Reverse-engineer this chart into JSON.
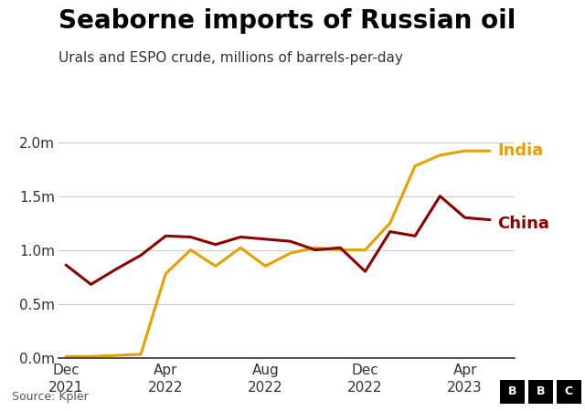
{
  "title": "Seaborne imports of Russian oil",
  "subtitle": "Urals and ESPO crude, millions of barrels-per-day",
  "source": "Source: Kpler",
  "india_color": "#E8A000",
  "china_color": "#8B0000",
  "background_color": "#ffffff",
  "ylim": [
    0.0,
    2.1
  ],
  "yticks": [
    0.0,
    0.5,
    1.0,
    1.5,
    2.0
  ],
  "ytick_labels": [
    "0.0m",
    "0.5m",
    "1.0m",
    "1.5m",
    "2.0m"
  ],
  "xtick_labels": [
    "Dec\n2021",
    "Apr\n2022",
    "Aug\n2022",
    "Dec\n2022",
    "Apr\n2023"
  ],
  "xtick_positions": [
    0,
    4,
    8,
    12,
    16
  ],
  "india_x": [
    0,
    1,
    2,
    3,
    4,
    5,
    6,
    7,
    8,
    9,
    10,
    11,
    12,
    13,
    14,
    15,
    16,
    17
  ],
  "india_y": [
    0.01,
    0.01,
    0.02,
    0.03,
    0.78,
    1.0,
    0.85,
    1.02,
    0.85,
    0.97,
    1.02,
    1.0,
    1.0,
    1.25,
    1.78,
    1.88,
    1.92,
    1.92
  ],
  "china_x": [
    0,
    1,
    2,
    3,
    4,
    5,
    6,
    7,
    8,
    9,
    10,
    11,
    12,
    13,
    14,
    15,
    16,
    17
  ],
  "china_y": [
    0.86,
    0.68,
    0.82,
    0.95,
    1.13,
    1.12,
    1.05,
    1.12,
    1.1,
    1.08,
    1.0,
    1.02,
    0.8,
    1.17,
    1.13,
    1.5,
    1.3,
    1.28
  ],
  "xlim": [
    -0.3,
    18.0
  ],
  "title_fontsize": 20,
  "subtitle_fontsize": 11,
  "tick_fontsize": 11,
  "label_fontsize": 13,
  "linewidth": 2.2
}
